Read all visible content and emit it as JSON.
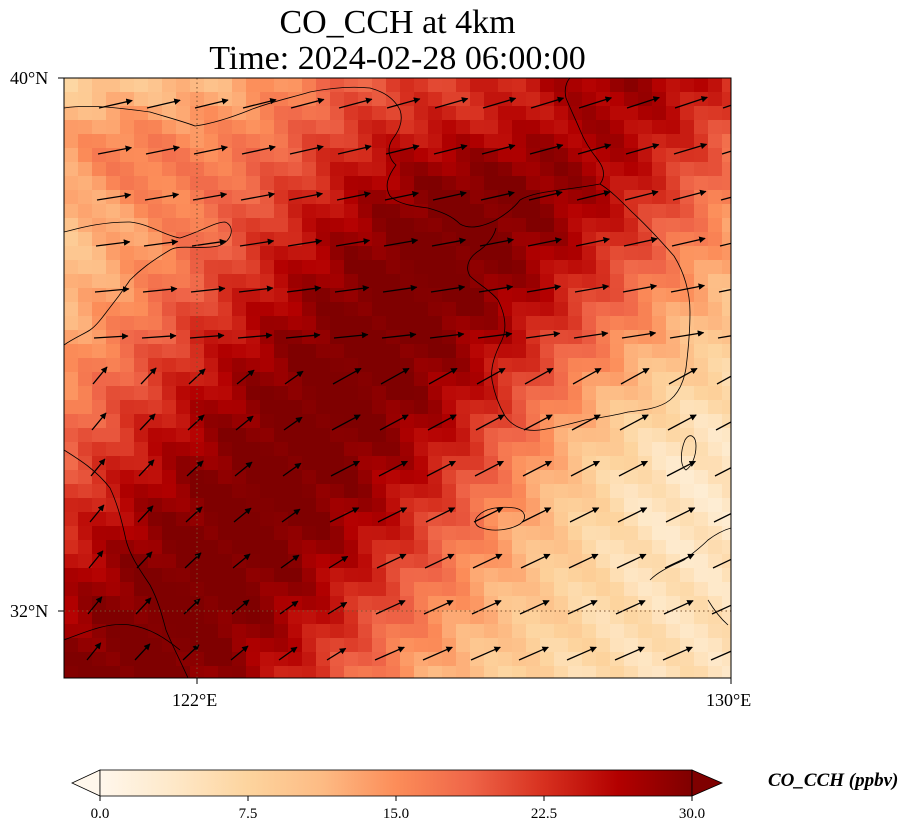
{
  "title_line1": "CO_CCH at 4km",
  "title_line2": "Time: 2024-02-28 06:00:00",
  "lat_labels": [
    "40°N",
    "32°N"
  ],
  "lon_labels": [
    "122°E",
    "130°E"
  ],
  "map": {
    "lon_range": [
      120,
      130
    ],
    "lat_range": [
      31,
      40
    ],
    "gridlines": {
      "lons": [
        122
      ],
      "lats": [
        32
      ]
    },
    "cmap": "OrRd",
    "wind_vectors": "shown"
  },
  "colorbar": {
    "label": "CO_CCH (ppbv)",
    "ticks": [
      "0.0",
      "7.5",
      "15.0",
      "22.5",
      "30.0"
    ],
    "range": [
      0,
      30
    ],
    "extend": "both",
    "colors": [
      "#fff7ec",
      "#fee8c8",
      "#fdd49e",
      "#fdbb84",
      "#fc8d59",
      "#ef6548",
      "#d7301f",
      "#b30000",
      "#7f0000"
    ]
  }
}
